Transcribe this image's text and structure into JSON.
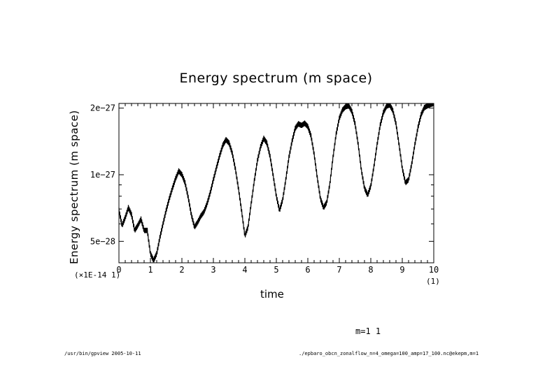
{
  "chart_data": {
    "type": "line",
    "title": "Energy spectrum (m space)",
    "xlabel": "time",
    "ylabel": "Energy spectrum (m space)",
    "x_multiplier_label": "(×1E-14 1)",
    "x_unit_label": "(1)",
    "xlim": [
      0,
      10
    ],
    "ylim": [
      4e-28,
      2.1e-27
    ],
    "x_ticks": [
      0,
      1,
      2,
      3,
      4,
      5,
      6,
      7,
      8,
      9,
      10
    ],
    "x_tick_labels": [
      "0",
      "1",
      "2",
      "3",
      "4",
      "5",
      "6",
      "7",
      "8",
      "9",
      "10"
    ],
    "y_ticks": [
      5e-28,
      1e-27,
      2e-27
    ],
    "y_tick_labels": [
      "5e−28",
      "1e−27",
      "2e−27"
    ],
    "series": [
      {
        "name": "m=1 1",
        "x": [
          0,
          0.1,
          0.2,
          0.3,
          0.4,
          0.5,
          0.6,
          0.7,
          0.8,
          0.9,
          1.0,
          1.1,
          1.2,
          1.3,
          1.4,
          1.5,
          1.6,
          1.7,
          1.8,
          1.9,
          2.0,
          2.1,
          2.2,
          2.3,
          2.4,
          2.5,
          2.6,
          2.7,
          2.8,
          2.9,
          3.0,
          3.1,
          3.2,
          3.3,
          3.4,
          3.5,
          3.6,
          3.7,
          3.8,
          3.9,
          4.0,
          4.1,
          4.2,
          4.3,
          4.4,
          4.5,
          4.6,
          4.7,
          4.8,
          4.9,
          5.0,
          5.1,
          5.2,
          5.3,
          5.4,
          5.5,
          5.6,
          5.7,
          5.8,
          5.9,
          6.0,
          6.1,
          6.2,
          6.3,
          6.4,
          6.5,
          6.6,
          6.7,
          6.8,
          6.9,
          7.0,
          7.1,
          7.2,
          7.3,
          7.4,
          7.5,
          7.6,
          7.7,
          7.8,
          7.9,
          8.0,
          8.1,
          8.2,
          8.3,
          8.4,
          8.5,
          8.6,
          8.7,
          8.8,
          8.9,
          9.0,
          9.1,
          9.2,
          9.3,
          9.4,
          9.5,
          9.6,
          9.7,
          9.8,
          9.9,
          10.0
        ],
        "y": [
          6.9e-28,
          5.9e-28,
          6.4e-28,
          7.1e-28,
          6.6e-28,
          5.6e-28,
          5.9e-28,
          6.3e-28,
          5.6e-28,
          5.6e-28,
          4.4e-28,
          4.1e-28,
          4.4e-28,
          5.2e-28,
          6e-28,
          6.9e-28,
          7.8e-28,
          8.7e-28,
          9.6e-28,
          1.04e-27,
          1e-27,
          9.2e-28,
          7.9e-28,
          6.6e-28,
          5.8e-28,
          6.1e-28,
          6.5e-28,
          6.8e-28,
          7.4e-28,
          8.3e-28,
          9.5e-28,
          1.08e-27,
          1.22e-27,
          1.36e-27,
          1.44e-27,
          1.39e-27,
          1.25e-27,
          1.06e-27,
          8.6e-28,
          6.8e-28,
          5.3e-28,
          5.8e-28,
          7.4e-28,
          9.4e-28,
          1.16e-27,
          1.34e-27,
          1.46e-27,
          1.39e-27,
          1.21e-27,
          9.9e-28,
          8e-28,
          6.9e-28,
          7.7e-28,
          9.5e-28,
          1.2e-27,
          1.42e-27,
          1.62e-27,
          1.7e-27,
          1.67e-27,
          1.71e-27,
          1.65e-27,
          1.5e-27,
          1.24e-27,
          9.7e-28,
          7.8e-28,
          7.1e-28,
          7.5e-28,
          9.1e-28,
          1.2e-27,
          1.53e-27,
          1.8e-27,
          1.96e-27,
          2.03e-27,
          2.05e-27,
          1.93e-27,
          1.7e-27,
          1.37e-27,
          1.05e-27,
          8.7e-28,
          8.1e-28,
          8.9e-28,
          1.09e-27,
          1.37e-27,
          1.68e-27,
          1.91e-27,
          2.04e-27,
          2.07e-27,
          1.95e-27,
          1.7e-27,
          1.36e-27,
          1.07e-27,
          9.2e-28,
          9.5e-28,
          1.12e-27,
          1.37e-27,
          1.64e-27,
          1.87e-27,
          2.01e-27,
          2.05e-27,
          2.08e-27,
          2.1e-27
        ]
      }
    ],
    "annotation": "m=1 1",
    "grid": false
  },
  "footer": {
    "left": "/usr/bin/gpview  2005-10-11",
    "right": "./epbaro_obcn_zonalflow_n=4_omega=100_amp=17_100.nc@ekepm,m=1"
  },
  "colors": {
    "line": "#000000",
    "background": "#ffffff"
  }
}
